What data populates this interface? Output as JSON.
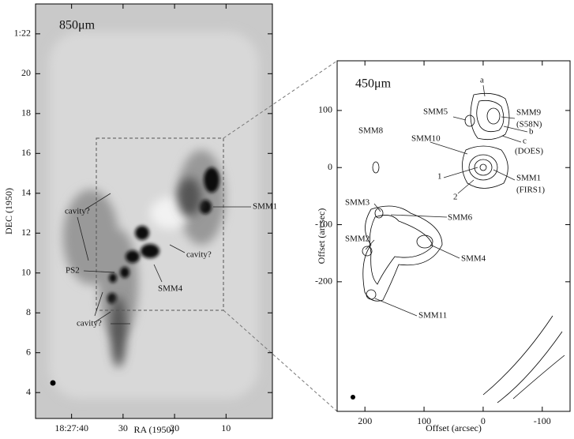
{
  "chart_data": [
    {
      "type": "image",
      "title": "850μm",
      "xlabel": "RA (1950)",
      "ylabel": "DEC (1950)",
      "xlim": [
        47,
        1
      ],
      "ylim": [
        2.7,
        23.5
      ],
      "xticks": [
        {
          "value": 40,
          "label": "18:27:40"
        },
        30,
        20,
        10
      ],
      "yticks": [
        {
          "value": 22,
          "label": "1:22"
        },
        20,
        18,
        16,
        14,
        12,
        10,
        8,
        6,
        4
      ],
      "annotations": [
        "cavity?",
        "PS2",
        "SMM4",
        "SMM1",
        "cavity?",
        "cavity?"
      ]
    },
    {
      "type": "contour",
      "title": "450μm",
      "xlabel": "Offset (arcsec)",
      "ylabel": "Offset (arcsec)",
      "xlim": [
        247,
        -147
      ],
      "ylim": [
        -427,
        187
      ],
      "xticks": [
        200,
        100,
        0,
        -100
      ],
      "yticks": [
        100,
        0,
        -100,
        -200
      ],
      "annotations": [
        "a",
        "SMM9",
        "(S58N)",
        "SMM5",
        "SMM8",
        "SMM10",
        "b",
        "c",
        "(DOES)",
        "1",
        "2",
        "SMM1",
        "(FIRS1)",
        "SMM3",
        "SMM6",
        "SMM2",
        "SMM4",
        "SMM11"
      ]
    }
  ]
}
